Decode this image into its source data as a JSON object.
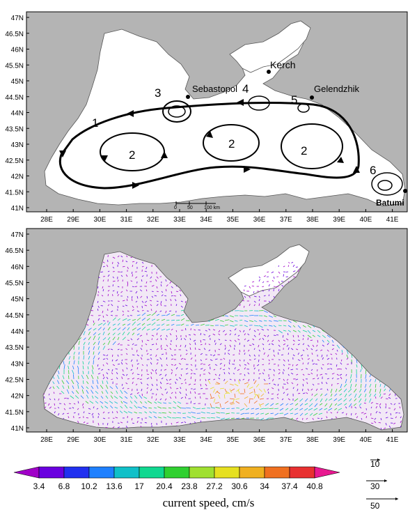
{
  "map_top": {
    "lat_labels": [
      "47N",
      "46.5N",
      "46N",
      "45.5N",
      "45N",
      "44.5N",
      "44N",
      "43.5N",
      "43N",
      "42.5N",
      "42N",
      "41.5N",
      "41N"
    ],
    "lon_labels": [
      "28E",
      "29E",
      "30E",
      "31E",
      "32E",
      "33E",
      "34E",
      "35E",
      "36E",
      "37E",
      "38E",
      "39E",
      "40E",
      "41E"
    ],
    "places": {
      "kerch": "Kerch",
      "sebastopol": "Sebastopol",
      "gelendzhik": "Gelendzhik",
      "batumi": "Batumi"
    },
    "circulation_labels": [
      "1",
      "2",
      "2",
      "2",
      "3",
      "4",
      "5",
      "6"
    ],
    "scale_bar": {
      "ticks": [
        "0",
        "50",
        "100 km"
      ]
    }
  },
  "map_bottom": {
    "lat_labels": [
      "47N",
      "46.5N",
      "46N",
      "45.5N",
      "45N",
      "44.5N",
      "44N",
      "43.5N",
      "43N",
      "42.5N",
      "42N",
      "41.5N",
      "41N"
    ],
    "lon_labels": [
      "28E",
      "29E",
      "30E",
      "31E",
      "32E",
      "33E",
      "34E",
      "35E",
      "36E",
      "37E",
      "38E",
      "39E",
      "40E",
      "41E"
    ]
  },
  "colorbar": {
    "ticks": [
      "3.4",
      "6.8",
      "10.2",
      "13.6",
      "17",
      "20.4",
      "23.8",
      "27.2",
      "30.6",
      "34",
      "37.4",
      "40.8"
    ],
    "colors": [
      "#a000c8",
      "#6a00e0",
      "#2030f0",
      "#1e80ff",
      "#10c0c8",
      "#10d890",
      "#30d030",
      "#a0e030",
      "#e6e020",
      "#f0b020",
      "#f07020",
      "#e83030",
      "#e81890"
    ],
    "title": "current speed, cm/s"
  },
  "vector_reference": {
    "values": [
      "10",
      "30",
      "50"
    ]
  }
}
